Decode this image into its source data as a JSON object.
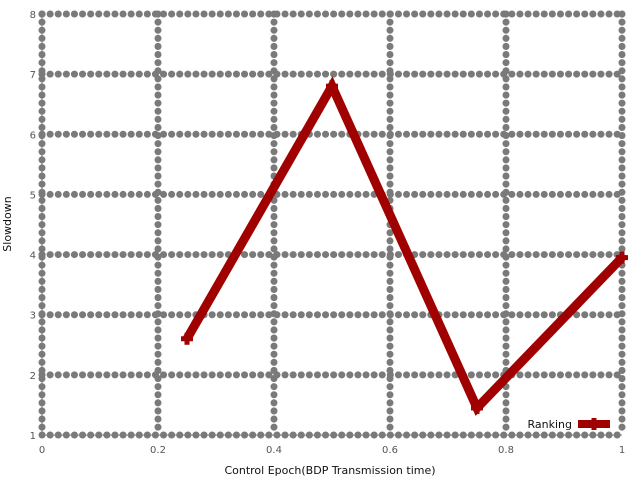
{
  "chart_data": {
    "type": "line",
    "title": "",
    "xlabel": "Control Epoch(BDP Transmission time)",
    "ylabel": "Slowdown",
    "xlim": [
      0,
      1
    ],
    "ylim": [
      1,
      8
    ],
    "xticks": [
      0,
      0.2,
      0.4,
      0.6,
      0.8,
      1
    ],
    "xtick_labels": [
      "0",
      "0.2",
      "0.4",
      "0.6",
      "0.8",
      "1"
    ],
    "yticks": [
      1,
      2,
      3,
      4,
      5,
      6,
      7,
      8
    ],
    "ytick_labels": [
      "1",
      "2",
      "3",
      "4",
      "5",
      "6",
      "7",
      "8"
    ],
    "grid": true,
    "legend_position": "bottom-right",
    "series": [
      {
        "name": "Ranking",
        "color": "#a00000",
        "marker": "plus",
        "x": [
          0.25,
          0.5,
          0.75,
          1.0
        ],
        "y": [
          2.6,
          6.8,
          1.45,
          3.95
        ]
      }
    ]
  }
}
